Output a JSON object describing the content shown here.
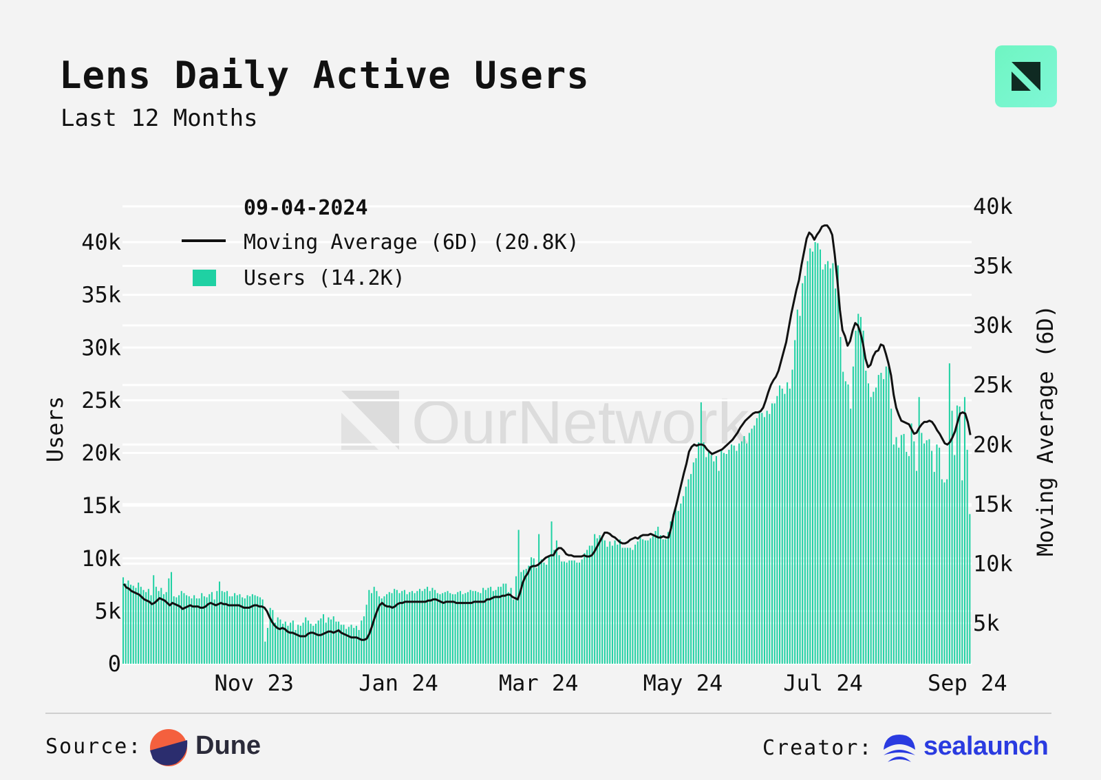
{
  "header": {
    "title": "Lens Daily Active Users",
    "subtitle": "Last 12 Months"
  },
  "brand_logo_icon": "ournetwork-logo-icon",
  "watermark": "OurNetwork",
  "footer": {
    "source_label": "Source:",
    "source_name": "Dune",
    "creator_label": "Creator:",
    "creator_name": "sealaunch"
  },
  "colors": {
    "bars": "#1fd1a3",
    "line": "#111111",
    "accent": "#6ff5c2",
    "creator_brand": "#2a3be0"
  },
  "chart_data": {
    "type": "bar",
    "title": "Lens Daily Active Users",
    "subtitle": "Last 12 Months",
    "tooltip": {
      "date": "09-04-2024",
      "line_label": "Moving Average (6D) (20.8K)",
      "bar_label": "Users (14.2K)"
    },
    "x_tick_labels": [
      "Nov 23",
      "Jan 24",
      "Mar 24",
      "May 24",
      "Jul 24",
      "Sep 24"
    ],
    "x_tick_fractions": [
      0.155,
      0.325,
      0.49,
      0.66,
      0.825,
      0.995
    ],
    "y_left": {
      "label": "Users",
      "ylim": [
        0,
        42000
      ],
      "ticks": [
        0,
        5000,
        10000,
        15000,
        20000,
        25000,
        30000,
        35000,
        40000
      ],
      "tick_labels": [
        "0",
        "5k",
        "10k",
        "15k",
        "20k",
        "25k",
        "30k",
        "35k",
        "40k"
      ]
    },
    "y_right": {
      "label": "Moving Average (6D)",
      "ylim": [
        1000,
        40000
      ],
      "ticks": [
        5000,
        10000,
        15000,
        20000,
        25000,
        30000,
        35000,
        40000
      ],
      "tick_labels": [
        "5k",
        "10k",
        "15k",
        "20k",
        "25k",
        "30k",
        "35k",
        "40k"
      ]
    },
    "grid": true,
    "legend_position": "top-left",
    "series": [
      {
        "name": "Users",
        "kind": "bar",
        "axis": "left",
        "values": [
          8200,
          7600,
          7900,
          7500,
          7400,
          7200,
          7700,
          7300,
          7000,
          6800,
          7100,
          6500,
          8400,
          7300,
          6900,
          7200,
          6600,
          6800,
          8100,
          8700,
          6400,
          6300,
          6500,
          6900,
          6700,
          6500,
          6400,
          6200,
          6500,
          6200,
          6200,
          6700,
          6400,
          6300,
          6600,
          6800,
          6100,
          6900,
          7800,
          6900,
          6800,
          6900,
          6400,
          6400,
          6700,
          6500,
          6600,
          6300,
          6200,
          6500,
          6400,
          6600,
          6500,
          6400,
          6300,
          6100,
          2100,
          3400,
          5300,
          5100,
          3900,
          4400,
          4200,
          3800,
          4000,
          3600,
          3900,
          4100,
          3200,
          3700,
          3600,
          3900,
          4400,
          4100,
          3800,
          3600,
          3800,
          4100,
          4300,
          4700,
          3900,
          4400,
          4200,
          4500,
          4000,
          4000,
          3700,
          3700,
          3300,
          3500,
          3700,
          3400,
          3600,
          3200,
          4100,
          4500,
          5600,
          7000,
          6700,
          7300,
          6900,
          6400,
          6200,
          6400,
          6600,
          6800,
          6700,
          7100,
          7000,
          6700,
          6900,
          7000,
          6600,
          6800,
          6900,
          6700,
          6900,
          7100,
          6900,
          7100,
          7300,
          6900,
          7200,
          7000,
          6700,
          6600,
          6700,
          6800,
          6900,
          6700,
          6600,
          6600,
          6800,
          6900,
          6600,
          6700,
          6800,
          7000,
          6900,
          6900,
          6800,
          6700,
          7200,
          7000,
          7200,
          7300,
          6900,
          7000,
          7300,
          7300,
          7600,
          7600,
          6800,
          7200,
          6100,
          8300,
          12700,
          8700,
          8900,
          9000,
          9300,
          10100,
          10000,
          9100,
          12300,
          9900,
          9600,
          9400,
          10200,
          13500,
          10800,
          11700,
          10300,
          9700,
          9700,
          9600,
          9800,
          9800,
          9800,
          9600,
          9600,
          9900,
          10500,
          10800,
          11200,
          11200,
          12300,
          11900,
          12200,
          12100,
          11700,
          11100,
          11600,
          11200,
          11700,
          11300,
          11800,
          11000,
          11000,
          11000,
          11000,
          10800,
          11300,
          11600,
          12000,
          11800,
          11700,
          11700,
          11900,
          12100,
          12600,
          13000,
          12200,
          11800,
          11800,
          12500,
          13500,
          14200,
          15000,
          14500,
          15200,
          15900,
          16800,
          17500,
          18000,
          19100,
          19500,
          21000,
          24800,
          21000,
          19600,
          20100,
          19800,
          19200,
          19700,
          18300,
          20300,
          20000,
          19900,
          20300,
          20800,
          20700,
          20200,
          20900,
          21100,
          21600,
          20900,
          21900,
          22300,
          22600,
          23300,
          23900,
          23800,
          23400,
          24000,
          23700,
          24700,
          24700,
          25400,
          26400,
          26100,
          25600,
          26700,
          26100,
          27900,
          30700,
          33600,
          33000,
          36100,
          36800,
          38200,
          39400,
          39100,
          40000,
          39900,
          39300,
          37400,
          37900,
          38200,
          37500,
          38000,
          35600,
          37800,
          31000,
          27700,
          26800,
          26500,
          24200,
          28200,
          31600,
          33200,
          32900,
          31600,
          27800,
          26600,
          25300,
          25800,
          26200,
          27400,
          27600,
          27000,
          28200,
          28100,
          24200,
          20800,
          21500,
          20500,
          21700,
          21800,
          20100,
          19700,
          22800,
          21100,
          18300,
          25300,
          21900,
          20900,
          21200,
          21300,
          20200,
          18200,
          20800,
          20500,
          17500,
          17200,
          17500,
          28500,
          24000,
          19800,
          24500,
          24400,
          17400,
          25300,
          20300,
          14200
        ]
      },
      {
        "name": "Moving Average (6D)",
        "kind": "line",
        "axis": "right",
        "values": [
          8300,
          8000,
          7900,
          7700,
          7600,
          7500,
          7400,
          7200,
          7000,
          6900,
          6800,
          6600,
          6700,
          6900,
          7100,
          7000,
          6900,
          6700,
          6500,
          6700,
          6600,
          6500,
          6400,
          6200,
          6300,
          6400,
          6500,
          6400,
          6400,
          6400,
          6300,
          6300,
          6400,
          6600,
          6700,
          6600,
          6500,
          6600,
          6700,
          6600,
          6600,
          6500,
          6500,
          6500,
          6500,
          6500,
          6400,
          6300,
          6300,
          6300,
          6400,
          6500,
          6500,
          6400,
          6400,
          6300,
          6000,
          5500,
          5100,
          4800,
          4600,
          4500,
          4600,
          4500,
          4300,
          4200,
          4200,
          4100,
          4000,
          3900,
          3900,
          3900,
          4100,
          4200,
          4200,
          4100,
          4000,
          4000,
          4100,
          4200,
          4300,
          4300,
          4200,
          4300,
          4400,
          4200,
          4100,
          4000,
          3900,
          3800,
          3800,
          3800,
          3700,
          3600,
          3600,
          3700,
          4100,
          4700,
          5400,
          6000,
          6500,
          6700,
          6500,
          6400,
          6400,
          6300,
          6400,
          6600,
          6700,
          6700,
          6800,
          6800,
          6800,
          6800,
          6800,
          6800,
          6800,
          6800,
          6800,
          6900,
          6900,
          7000,
          7000,
          6900,
          6800,
          6700,
          6800,
          6800,
          6800,
          6800,
          6700,
          6700,
          6700,
          6700,
          6700,
          6700,
          6700,
          6800,
          6800,
          6800,
          6800,
          6800,
          7000,
          7000,
          7100,
          7200,
          7200,
          7200,
          7300,
          7300,
          7400,
          7400,
          7200,
          7100,
          7000,
          7600,
          8400,
          8900,
          9200,
          9700,
          9800,
          9800,
          9900,
          10100,
          10300,
          10500,
          10600,
          10700,
          10700,
          11100,
          11300,
          11300,
          11100,
          10800,
          10700,
          10700,
          10600,
          10600,
          10600,
          10600,
          10700,
          10600,
          10600,
          10700,
          11000,
          11400,
          11800,
          12200,
          12600,
          12600,
          12500,
          12300,
          12200,
          12000,
          11800,
          11700,
          11700,
          11800,
          12000,
          12100,
          12200,
          12100,
          12300,
          12400,
          12400,
          12400,
          12500,
          12400,
          12300,
          12200,
          12200,
          12300,
          12200,
          12200,
          13000,
          14100,
          14900,
          15800,
          16700,
          17600,
          18400,
          19400,
          19800,
          20000,
          19900,
          20000,
          20000,
          19900,
          19600,
          19400,
          19200,
          19300,
          19400,
          19500,
          19600,
          19800,
          20000,
          20200,
          20400,
          20700,
          21000,
          21400,
          21700,
          22000,
          22200,
          22400,
          22600,
          22700,
          22700,
          22800,
          23100,
          23700,
          24400,
          25000,
          25400,
          25700,
          26200,
          27000,
          27800,
          28600,
          29800,
          31000,
          32000,
          33000,
          33800,
          35100,
          36200,
          37300,
          37800,
          37600,
          37200,
          37600,
          37900,
          38300,
          38400,
          38400,
          38100,
          37600,
          35900,
          33800,
          31300,
          29600,
          29100,
          28300,
          28700,
          29600,
          30200,
          30000,
          29400,
          28500,
          27200,
          26500,
          26700,
          27400,
          27800,
          27900,
          28400,
          28300,
          27600,
          26800,
          25800,
          24200,
          23100,
          22500,
          22000,
          21900,
          21800,
          21700,
          21300,
          20900,
          21000,
          21400,
          21700,
          21900,
          21900,
          22000,
          21900,
          21600,
          21200,
          20900,
          20500,
          20100,
          20000,
          20200,
          20600,
          21100,
          21900,
          22600,
          22700,
          22600,
          21900,
          20800
        ]
      }
    ]
  }
}
